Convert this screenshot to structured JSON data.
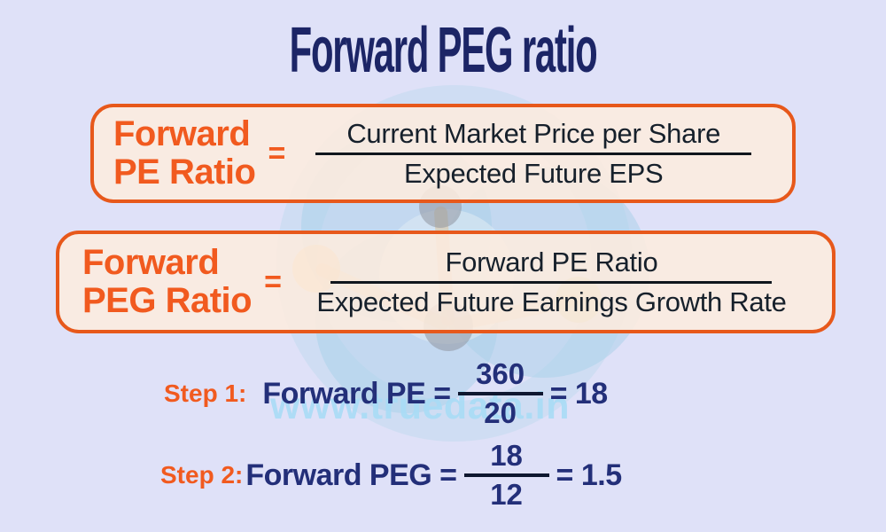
{
  "page": {
    "title": "Forward PEG ratio"
  },
  "colors": {
    "background": "#dfe1f8",
    "accent_orange": "#f15a1f",
    "box_fill": "#fcebdd",
    "box_border": "#e7581b",
    "title_navy": "#1c2566",
    "formula_text_dark": "#16202b",
    "step_navy": "#232f79",
    "watermark_blue": "#a9dcf6"
  },
  "formula_boxes": [
    {
      "label_line1": "Forward",
      "label_line2": "PE Ratio",
      "equals": "=",
      "numerator": "Current Market Price per Share",
      "denominator": "Expected Future EPS"
    },
    {
      "label_line1": "Forward",
      "label_line2": "PEG Ratio",
      "equals": "=",
      "numerator": "Forward PE Ratio",
      "denominator": "Expected Future Earnings Growth Rate"
    }
  ],
  "steps": [
    {
      "label": "Step 1:",
      "lhs": "Forward PE =",
      "numerator": "360",
      "denominator": "20",
      "result": "= 18"
    },
    {
      "label": "Step 2:",
      "lhs": "Forward PEG =",
      "numerator": "18",
      "denominator": "12",
      "result": "= 1.5"
    }
  ],
  "watermark": {
    "text": "www.truedata.in"
  }
}
